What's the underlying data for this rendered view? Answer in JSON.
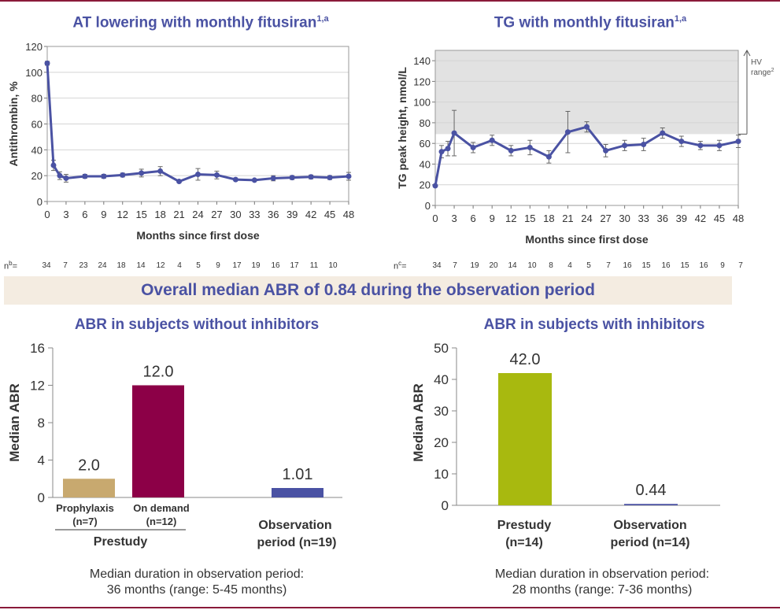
{
  "top_left": {
    "title": "AT lowering with monthly fitusiran",
    "title_sup": "1,a",
    "n_label": "n",
    "n_label_sup": "b",
    "n_label_suffix": "=",
    "n_values": [
      "34",
      "7",
      "23",
      "24",
      "18",
      "14",
      "12",
      "4",
      "5",
      "9",
      "17",
      "19",
      "16",
      "17",
      "11",
      "10"
    ]
  },
  "top_right": {
    "title": "TG with monthly fitusiran",
    "title_sup": "1,a",
    "n_label": "n",
    "n_label_sup": "c",
    "n_label_suffix": "=",
    "n_values": [
      "34",
      "7",
      "19",
      "20",
      "14",
      "10",
      "8",
      "4",
      "5",
      "7",
      "16",
      "15",
      "16",
      "15",
      "16",
      "9",
      "7"
    ],
    "hv_label_line1": "HV",
    "hv_label_line2": "range",
    "hv_label_sup": "2"
  },
  "banner": {
    "text": "Overall median ABR of 0.84 during the observation period"
  },
  "bottom_left": {
    "title": "ABR in subjects without inhibitors",
    "note_line1": "Median duration in observation period:",
    "note_line2": "36 months (range: 5-45 months)",
    "group_label": "Prestudy"
  },
  "bottom_right": {
    "title": "ABR in subjects with inhibitors",
    "note_line1": "Median duration in observation period:",
    "note_line2": "28 months (range: 7-36 months)"
  },
  "chart_data": [
    {
      "type": "line",
      "title": "AT lowering with monthly fitusiran",
      "xlabel": "Months since first dose",
      "ylabel": "Antithrombin, %",
      "xlim": [
        0,
        48
      ],
      "ylim": [
        0,
        120
      ],
      "xticks": [
        "0",
        "3",
        "6",
        "9",
        "12",
        "15",
        "18",
        "21",
        "24",
        "27",
        "30",
        "33",
        "36",
        "39",
        "42",
        "45",
        "48"
      ],
      "yticks": [
        "0",
        "20",
        "40",
        "60",
        "80",
        "100",
        "120"
      ],
      "color": "#4a52a3",
      "series": [
        {
          "x": [
            0,
            1,
            2,
            3,
            6,
            9,
            12,
            15,
            18,
            21,
            24,
            27,
            30,
            33,
            36,
            39,
            42,
            45,
            48
          ],
          "y": [
            107,
            28,
            20,
            18,
            19.5,
            19.5,
            20.5,
            22,
            23.5,
            15.5,
            21,
            20.5,
            17,
            16.5,
            18,
            18.5,
            19,
            18.5,
            19.5
          ],
          "err": [
            1.5,
            4,
            3,
            3,
            1.5,
            1.5,
            1.5,
            3,
            3.5,
            1,
            4.5,
            3,
            1,
            1,
            2,
            1.5,
            1.5,
            1.5,
            3
          ]
        }
      ]
    },
    {
      "type": "line",
      "title": "TG with monthly fitusiran",
      "xlabel": "Months since first dose",
      "ylabel": "TG peak height, nmol/L",
      "xlim": [
        0,
        48
      ],
      "ylim": [
        0,
        150
      ],
      "xticks": [
        "0",
        "3",
        "6",
        "9",
        "12",
        "15",
        "18",
        "21",
        "24",
        "27",
        "30",
        "33",
        "36",
        "39",
        "42",
        "45",
        "48"
      ],
      "yticks": [
        "0",
        "20",
        "40",
        "60",
        "80",
        "100",
        "120",
        "140"
      ],
      "hv_range": [
        69,
        150
      ],
      "color": "#4a52a3",
      "series": [
        {
          "x": [
            0,
            1,
            2,
            3,
            6,
            9,
            12,
            15,
            18,
            21,
            24,
            27,
            30,
            33,
            36,
            39,
            42,
            45,
            48
          ],
          "y": [
            19,
            52,
            55,
            70,
            56,
            63,
            53,
            56,
            47,
            71,
            76,
            53,
            58,
            59,
            70,
            62,
            58,
            58,
            62
          ],
          "err": [
            1,
            6,
            7,
            22,
            5,
            5,
            5,
            7,
            6,
            20,
            5,
            6,
            5,
            6,
            5,
            5,
            4,
            5,
            6
          ]
        }
      ]
    },
    {
      "type": "bar",
      "title": "ABR in subjects without inhibitors",
      "ylabel": "Median ABR",
      "ylim": [
        0,
        16
      ],
      "yticks": [
        "0",
        "4",
        "8",
        "12",
        "16"
      ],
      "categories": [
        "Prophylaxis (n=7)",
        "On demand (n=12)",
        "Observation period (n=19)"
      ],
      "category_lines": [
        [
          "Prophylaxis",
          "(n=7)"
        ],
        [
          "On demand",
          "(n=12)"
        ],
        [
          "Observation",
          "period (n=19)"
        ]
      ],
      "values": [
        2.0,
        12.0,
        1.01
      ],
      "labels": [
        "2.0",
        "12.0",
        "1.01"
      ],
      "colors": [
        "#c8a96f",
        "#8c0047",
        "#4a52a3"
      ]
    },
    {
      "type": "bar",
      "title": "ABR in subjects with inhibitors",
      "ylabel": "Median ABR",
      "ylim": [
        0,
        50
      ],
      "yticks": [
        "0",
        "10",
        "20",
        "30",
        "40",
        "50"
      ],
      "categories": [
        "Prestudy (n=14)",
        "Observation period (n=14)"
      ],
      "category_lines": [
        [
          "Prestudy",
          "(n=14)"
        ],
        [
          "Observation",
          "period (n=14)"
        ]
      ],
      "values": [
        42.0,
        0.44
      ],
      "labels": [
        "42.0",
        "0.44"
      ],
      "colors": [
        "#a8b90f",
        "#4a52a3"
      ]
    }
  ]
}
